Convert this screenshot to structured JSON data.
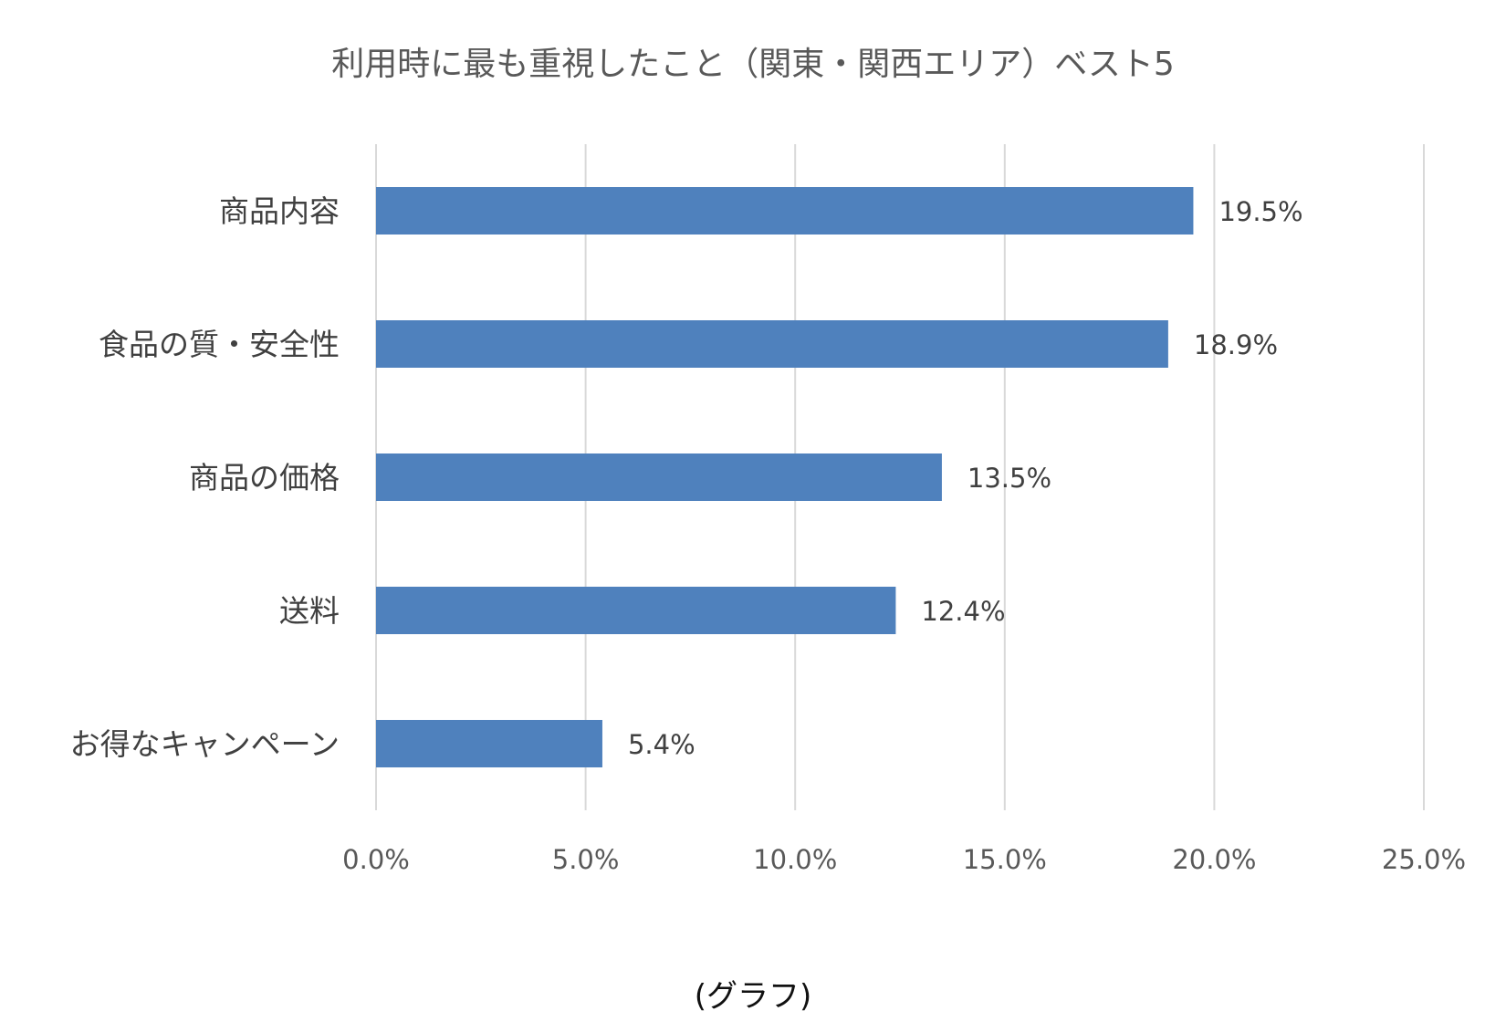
{
  "chart_data": {
    "type": "bar",
    "orientation": "horizontal",
    "title": "利用時に最も重視したこと（関東・関西エリア）ベスト5",
    "categories": [
      "商品内容",
      "食品の質・安全性",
      "商品の価格",
      "送料",
      "お得なキャンペーン"
    ],
    "values": [
      19.5,
      18.9,
      13.5,
      12.4,
      5.4
    ],
    "data_labels": [
      "19.5%",
      "18.9%",
      "13.5%",
      "12.4%",
      "5.4%"
    ],
    "xticks": [
      "0.0%",
      "5.0%",
      "10.0%",
      "15.0%",
      "20.0%",
      "25.0%"
    ],
    "xlim": [
      0,
      25
    ],
    "unit": "%",
    "grid": true,
    "legend": "none",
    "bar_color": "#4F81BD"
  },
  "caption": "(グラフ)"
}
